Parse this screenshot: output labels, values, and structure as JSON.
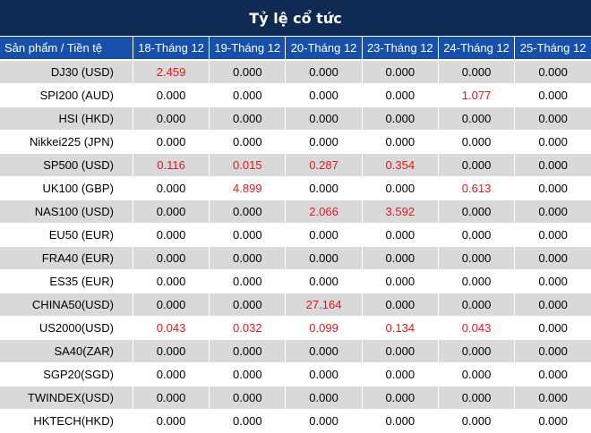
{
  "title": "Tỷ lệ cổ tức",
  "header": [
    "Sản phẩm / Tiền tệ",
    "18-Tháng 12",
    "19-Tháng 12",
    "20-Tháng 12",
    "23-Tháng 12",
    "24-Tháng 12",
    "25-Tháng 12"
  ],
  "colors": {
    "title_bg": "#0f2a52",
    "header_bg": "#1650a8",
    "row_alt": "#d9d9d9",
    "highlight": "#e0191f"
  },
  "rows": [
    {
      "product": "DJ30 (USD)",
      "values": [
        "2.459",
        "0.000",
        "0.000",
        "0.000",
        "0.000",
        "0.000"
      ]
    },
    {
      "product": "SPI200 (AUD)",
      "values": [
        "0.000",
        "0.000",
        "0.000",
        "0.000",
        "1.077",
        "0.000"
      ]
    },
    {
      "product": "HSI (HKD)",
      "values": [
        "0.000",
        "0.000",
        "0.000",
        "0.000",
        "0.000",
        "0.000"
      ]
    },
    {
      "product": "Nikkei225 (JPN)",
      "values": [
        "0.000",
        "0.000",
        "0.000",
        "0.000",
        "0.000",
        "0.000"
      ]
    },
    {
      "product": "SP500 (USD)",
      "values": [
        "0.116",
        "0.015",
        "0.287",
        "0.354",
        "0.000",
        "0.000"
      ]
    },
    {
      "product": "UK100 (GBP)",
      "values": [
        "0.000",
        "4.899",
        "0.000",
        "0.000",
        "0.613",
        "0.000"
      ]
    },
    {
      "product": "NAS100 (USD)",
      "values": [
        "0.000",
        "0.000",
        "2.066",
        "3.592",
        "0.000",
        "0.000"
      ]
    },
    {
      "product": "EU50 (EUR)",
      "values": [
        "0.000",
        "0.000",
        "0.000",
        "0.000",
        "0.000",
        "0.000"
      ]
    },
    {
      "product": "FRA40 (EUR)",
      "values": [
        "0.000",
        "0.000",
        "0.000",
        "0.000",
        "0.000",
        "0.000"
      ]
    },
    {
      "product": "ES35 (EUR)",
      "values": [
        "0.000",
        "0.000",
        "0.000",
        "0.000",
        "0.000",
        "0.000"
      ]
    },
    {
      "product": "CHINA50(USD)",
      "values": [
        "0.000",
        "0.000",
        "27.164",
        "0.000",
        "0.000",
        "0.000"
      ]
    },
    {
      "product": "US2000(USD)",
      "values": [
        "0.043",
        "0.032",
        "0.099",
        "0.134",
        "0.043",
        "0.000"
      ]
    },
    {
      "product": "SA40(ZAR)",
      "values": [
        "0.000",
        "0.000",
        "0.000",
        "0.000",
        "0.000",
        "0.000"
      ]
    },
    {
      "product": "SGP20(SGD)",
      "values": [
        "0.000",
        "0.000",
        "0.000",
        "0.000",
        "0.000",
        "0.000"
      ]
    },
    {
      "product": "TWINDEX(USD)",
      "values": [
        "0.000",
        "0.000",
        "0.000",
        "0.000",
        "0.000",
        "0.000"
      ]
    },
    {
      "product": "HKTECH(HKD)",
      "values": [
        "0.000",
        "0.000",
        "0.000",
        "0.000",
        "0.000",
        "0.000"
      ]
    }
  ]
}
